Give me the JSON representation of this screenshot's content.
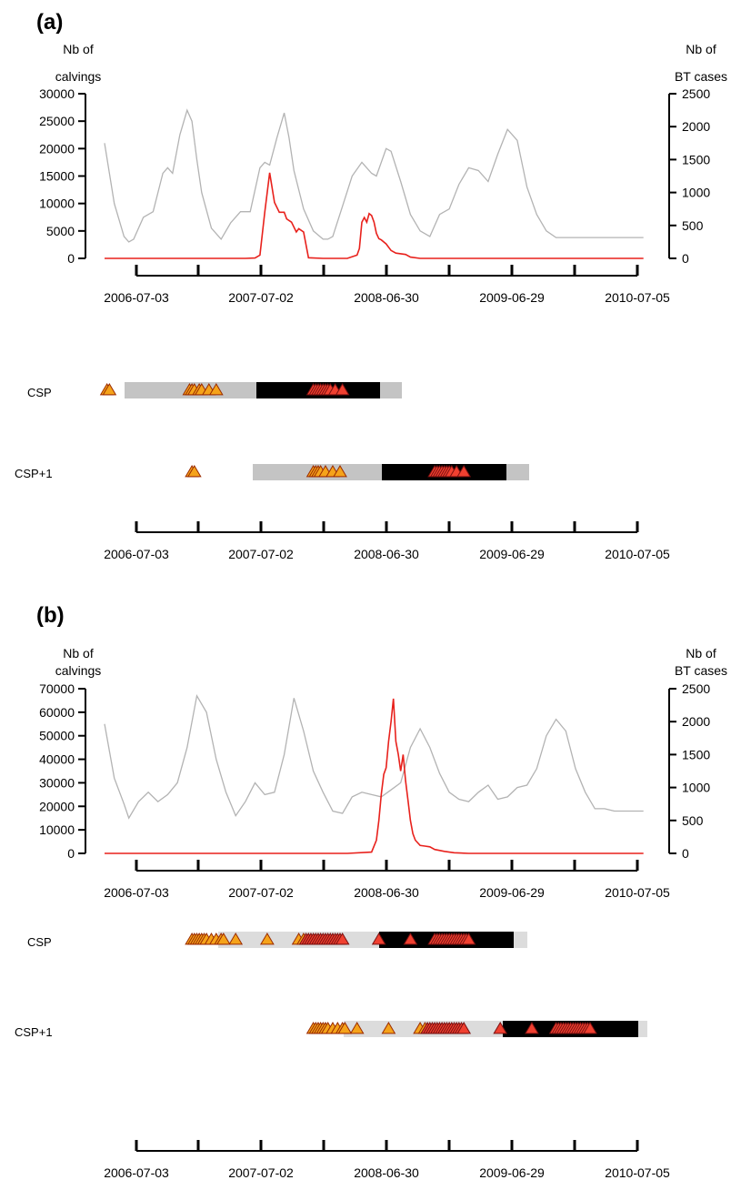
{
  "panels": [
    {
      "label": "(a)",
      "left_axis_title": [
        "Nb of",
        "calvings"
      ],
      "right_axis_title": [
        "Nb of",
        "BT cases"
      ],
      "row_labels": [
        "CSP",
        "CSP+1"
      ],
      "chart_data": {
        "type": "line",
        "x_labels": [
          "2006-07-03",
          "2007-07-02",
          "2008-06-30",
          "2009-06-29",
          "2010-07-05"
        ],
        "ylim_left": [
          0,
          30000
        ],
        "yticks_left": [
          0,
          5000,
          10000,
          15000,
          20000,
          25000,
          30000
        ],
        "ylim_right": [
          0,
          2500
        ],
        "yticks_right": [
          0,
          500,
          1000,
          1500,
          2000,
          2500
        ],
        "colors": {
          "calvings": "#b3b3b3",
          "bt": "#e8211c"
        },
        "series": [
          {
            "axis": "left",
            "weeks": [
              0,
              4,
              8,
              10,
              12,
              16,
              20,
              24,
              26,
              28,
              31,
              34,
              36,
              38,
              40,
              44,
              48,
              52,
              56,
              60,
              64,
              66,
              68,
              71,
              74,
              76,
              78,
              82,
              86,
              90,
              92,
              94,
              98,
              102,
              106,
              110,
              112,
              116,
              118,
              122,
              126,
              130,
              134,
              138,
              142,
              146,
              150,
              154,
              158,
              162,
              166,
              170,
              174,
              178,
              182,
              186,
              190,
              194,
              198,
              202,
              206,
              210,
              214,
              218,
              222
            ],
            "values": [
              21000,
              10000,
              4000,
              3000,
              3500,
              7500,
              8500,
              15500,
              16500,
              15500,
              22500,
              27000,
              25000,
              18000,
              12000,
              5500,
              3500,
              6500,
              8500,
              8500,
              16500,
              17500,
              17000,
              22000,
              26500,
              22000,
              16000,
              9000,
              5000,
              3500,
              3500,
              4000,
              9500,
              15000,
              17500,
              15500,
              15000,
              20000,
              19500,
              14000,
              8000,
              5000,
              4000,
              8000,
              9000,
              13500,
              16500,
              16000,
              14000,
              19000,
              23500,
              21500,
              13000,
              8000,
              5000,
              3800,
              3800,
              3800,
              3800,
              3800,
              3800,
              3800,
              3800,
              3800,
              3800
            ]
          },
          {
            "axis": "right",
            "weeks": [
              0,
              10,
              20,
              30,
              40,
              50,
              55,
              58,
              62,
              64,
              66,
              68,
              70,
              72,
              74,
              75,
              77,
              79,
              80,
              82,
              84,
              90,
              100,
              104,
              105,
              106,
              107,
              108,
              109,
              110,
              111,
              112,
              113,
              114,
              116,
              118,
              120,
              124,
              126,
              130,
              140,
              150,
              180,
              222
            ],
            "values": [
              0,
              0,
              0,
              0,
              0,
              0,
              0,
              0,
              5,
              50,
              700,
              1300,
              850,
              700,
              700,
              600,
              550,
              400,
              450,
              400,
              10,
              0,
              0,
              50,
              150,
              550,
              620,
              550,
              680,
              650,
              550,
              380,
              300,
              280,
              220,
              120,
              80,
              60,
              20,
              0,
              0,
              0,
              0,
              0
            ]
          }
        ]
      },
      "csp_rows": [
        {
          "name": "CSP",
          "triangles_orange": [
            1,
            2,
            35,
            36,
            37,
            39,
            40,
            43,
            46
          ],
          "triangles_red": [
            86,
            87,
            88,
            89,
            90,
            91,
            92,
            93,
            95,
            98
          ]
        },
        {
          "name": "CSP+1",
          "triangles_orange": [
            36,
            37,
            86,
            87,
            88,
            89,
            91,
            94,
            97
          ],
          "triangles_red": [
            136,
            137,
            138,
            139,
            140,
            141,
            142,
            143,
            145,
            148
          ]
        }
      ],
      "bottom_x_labels": [
        "2006-07-03",
        "2007-07-02",
        "2008-06-30",
        "2009-06-29",
        "2010-07-05"
      ]
    },
    {
      "label": "(b)",
      "left_axis_title": [
        "Nb of",
        "calvings"
      ],
      "right_axis_title": [
        "Nb of",
        "BT cases"
      ],
      "row_labels": [
        "CSP",
        "CSP+1"
      ],
      "chart_data": {
        "type": "line",
        "x_labels": [
          "2006-07-03",
          "2007-07-02",
          "2008-06-30",
          "2009-06-29",
          "2010-07-05"
        ],
        "ylim_left": [
          0,
          70000
        ],
        "yticks_left": [
          0,
          10000,
          20000,
          30000,
          40000,
          50000,
          60000,
          70000
        ],
        "ylim_right": [
          0,
          2500
        ],
        "yticks_right": [
          0,
          500,
          1000,
          1500,
          2000,
          2500
        ],
        "colors": {
          "calvings": "#b3b3b3",
          "bt": "#e8211c"
        },
        "series": [
          {
            "axis": "left",
            "weeks": [
              0,
              4,
              8,
              10,
              14,
              18,
              22,
              26,
              30,
              34,
              38,
              42,
              46,
              50,
              54,
              58,
              62,
              66,
              70,
              74,
              78,
              82,
              86,
              90,
              94,
              98,
              102,
              106,
              110,
              114,
              118,
              122,
              126,
              130,
              134,
              138,
              142,
              146,
              150,
              154,
              158,
              162,
              166,
              170,
              174,
              178,
              182,
              186,
              190,
              194,
              198,
              202,
              206,
              210,
              214,
              218,
              222
            ],
            "values": [
              55000,
              32000,
              21000,
              15000,
              22000,
              26000,
              22000,
              25000,
              30000,
              45000,
              67000,
              60000,
              40000,
              26000,
              16000,
              22000,
              30000,
              25000,
              26000,
              42000,
              66000,
              52000,
              35000,
              26000,
              18000,
              17000,
              24000,
              26000,
              25000,
              24000,
              27000,
              30000,
              45000,
              53000,
              45000,
              34000,
              26000,
              23000,
              22000,
              26000,
              29000,
              23000,
              24000,
              28000,
              29000,
              36000,
              50000,
              57000,
              52000,
              36000,
              26000,
              19000,
              19000,
              18000,
              18000,
              18000,
              18000
            ]
          },
          {
            "axis": "right",
            "weeks": [
              0,
              20,
              40,
              60,
              80,
              100,
              110,
              112,
              113,
              114,
              115,
              116,
              117,
              118,
              119,
              120,
              121,
              122,
              123,
              124,
              125,
              126,
              127,
              128,
              130,
              132,
              134,
              136,
              140,
              144,
              150,
              160,
              222
            ],
            "values": [
              0,
              0,
              0,
              0,
              0,
              0,
              20,
              200,
              500,
              900,
              1200,
              1300,
              1700,
              2000,
              2350,
              1700,
              1500,
              1250,
              1500,
              1100,
              800,
              500,
              300,
              200,
              120,
              110,
              100,
              60,
              30,
              10,
              0,
              0,
              0
            ]
          }
        ]
      },
      "csp_rows": [
        {
          "name": "CSP",
          "triangles_orange": [
            36,
            37,
            38,
            39,
            40,
            41,
            42,
            44,
            46,
            48,
            49,
            54,
            67,
            80,
            82
          ],
          "triangles_red": [
            83,
            84,
            85,
            86,
            87,
            88,
            89,
            90,
            91,
            92,
            93,
            94,
            95,
            96,
            97,
            98
          ],
          "triangles_red2": [
            113,
            126,
            136,
            137,
            138,
            139,
            140,
            141,
            142,
            143,
            144,
            145,
            146,
            147,
            148,
            149,
            150
          ]
        },
        {
          "name": "CSP+1",
          "triangles_orange": [
            86,
            87,
            88,
            89,
            90,
            91,
            92,
            94,
            96,
            98,
            99,
            104,
            117,
            130,
            132
          ],
          "triangles_red": [
            133,
            134,
            135,
            136,
            137,
            138,
            139,
            140,
            141,
            142,
            143,
            144,
            145,
            146,
            147,
            148
          ],
          "triangles_red2": [
            163,
            176,
            186,
            187,
            188,
            189,
            190,
            191,
            192,
            193,
            194,
            195,
            196,
            197,
            198,
            199,
            200
          ]
        }
      ],
      "bottom_x_labels": [
        "2006-07-03",
        "2007-07-02",
        "2008-06-30",
        "2009-06-29",
        "2010-07-05"
      ]
    }
  ]
}
